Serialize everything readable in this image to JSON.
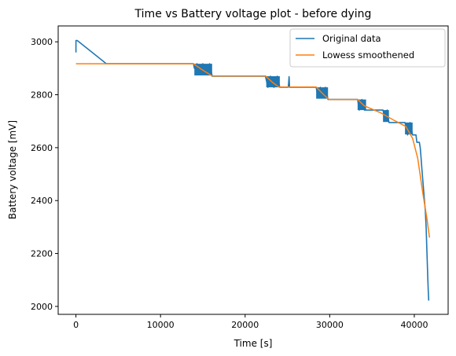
{
  "chart_data": {
    "type": "line",
    "title": "Time vs Battery voltage plot - before dying",
    "xlabel": "Time [s]",
    "ylabel": "Battery voltage [mV]",
    "xlim": [
      -2100,
      44000
    ],
    "ylim": [
      1970,
      3060
    ],
    "xticks": [
      0,
      10000,
      20000,
      30000,
      40000
    ],
    "yticks": [
      2000,
      2200,
      2400,
      2600,
      2800,
      3000
    ],
    "grid": false,
    "legend_position": "top-right",
    "series": [
      {
        "name": "Original data",
        "color": "#1f77b4",
        "points": [
          [
            0,
            2960
          ],
          [
            0,
            3005
          ],
          [
            150,
            3005
          ],
          [
            3600,
            2917
          ],
          [
            13900,
            2917
          ],
          [
            14000,
            2900
          ],
          [
            14300,
            2917
          ],
          [
            14600,
            2880
          ],
          [
            15000,
            2917
          ],
          [
            15400,
            2880
          ],
          [
            15800,
            2917
          ],
          [
            16100,
            2872
          ],
          [
            16100,
            2870
          ],
          [
            22400,
            2870
          ],
          [
            22700,
            2828
          ],
          [
            23000,
            2870
          ],
          [
            23400,
            2828
          ],
          [
            23800,
            2870
          ],
          [
            24100,
            2828
          ],
          [
            25100,
            2828
          ],
          [
            25200,
            2868
          ],
          [
            25250,
            2828
          ],
          [
            28400,
            2828
          ],
          [
            28600,
            2790
          ],
          [
            28900,
            2828
          ],
          [
            29200,
            2790
          ],
          [
            29500,
            2828
          ],
          [
            29800,
            2782
          ],
          [
            33300,
            2782
          ],
          [
            33500,
            2742
          ],
          [
            33800,
            2782
          ],
          [
            34100,
            2742
          ],
          [
            34300,
            2742
          ],
          [
            36300,
            2742
          ],
          [
            36500,
            2705
          ],
          [
            36800,
            2742
          ],
          [
            37000,
            2695
          ],
          [
            38900,
            2695
          ],
          [
            39200,
            2648
          ],
          [
            39500,
            2695
          ],
          [
            39800,
            2648
          ],
          [
            40200,
            2648
          ],
          [
            40300,
            2620
          ],
          [
            40600,
            2620
          ],
          [
            40700,
            2600
          ],
          [
            40800,
            2560
          ],
          [
            40900,
            2520
          ],
          [
            41000,
            2480
          ],
          [
            41100,
            2440
          ],
          [
            41200,
            2400
          ],
          [
            41300,
            2360
          ],
          [
            41400,
            2300
          ],
          [
            41500,
            2200
          ],
          [
            41600,
            2100
          ],
          [
            41650,
            2060
          ],
          [
            41700,
            2022
          ]
        ]
      },
      {
        "name": "Lowess smoothened",
        "color": "#ff7f0e",
        "points": [
          [
            0,
            2917
          ],
          [
            13900,
            2917
          ],
          [
            14900,
            2895
          ],
          [
            16100,
            2871
          ],
          [
            22400,
            2871
          ],
          [
            23300,
            2845
          ],
          [
            24000,
            2829
          ],
          [
            28400,
            2829
          ],
          [
            29300,
            2800
          ],
          [
            29900,
            2782
          ],
          [
            33300,
            2782
          ],
          [
            34100,
            2758
          ],
          [
            36000,
            2732
          ],
          [
            37500,
            2705
          ],
          [
            39000,
            2680
          ],
          [
            39800,
            2635
          ],
          [
            40400,
            2560
          ],
          [
            41000,
            2430
          ],
          [
            41500,
            2330
          ],
          [
            41800,
            2260
          ]
        ]
      }
    ]
  }
}
